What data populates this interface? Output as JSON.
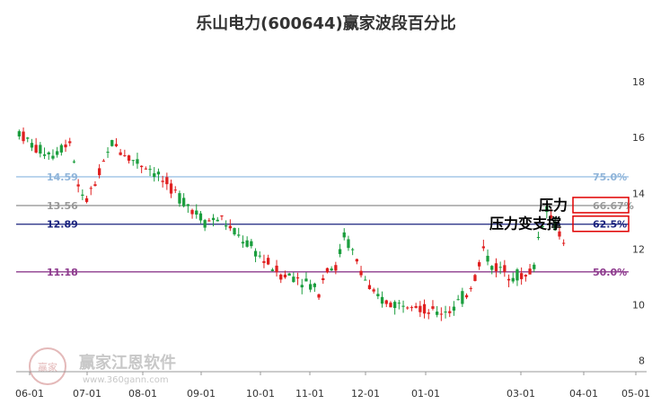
{
  "chart_data": {
    "type": "candlestick",
    "title": "乐山电力(600644)赢家波段百分比",
    "x_ticks": [
      "06-01",
      "07-01",
      "08-01",
      "09-01",
      "10-01",
      "11-01",
      "12-01",
      "01-01",
      "03-01",
      "04-01",
      "05-01"
    ],
    "y_ticks": [
      8,
      10,
      12,
      14,
      16,
      18
    ],
    "ylim": [
      7.6,
      19.0
    ],
    "levels": [
      {
        "label_left": "14.59",
        "label_right": "75.0%",
        "value": 14.59,
        "color": "#9dc3e6"
      },
      {
        "label_left": "13.56",
        "label_right": "66.67%",
        "value": 13.56,
        "color": "#999999"
      },
      {
        "label_left": "12.89",
        "label_right": "62.5%",
        "value": 12.89,
        "color": "#1a237e"
      },
      {
        "label_left": "11.18",
        "label_right": "50.0%",
        "value": 11.18,
        "color": "#8e3b8e"
      }
    ],
    "callouts": [
      {
        "text": "压力",
        "level": 13.56
      },
      {
        "text": "压力变支撑",
        "level": 12.89
      }
    ],
    "price_path": [
      [
        0,
        16.2
      ],
      [
        4,
        15.6
      ],
      [
        8,
        15.4
      ],
      [
        12,
        15.9
      ],
      [
        15,
        13.7
      ],
      [
        18,
        14.3
      ],
      [
        22,
        15.8
      ],
      [
        27,
        15.2
      ],
      [
        31,
        14.9
      ],
      [
        35,
        14.3
      ],
      [
        40,
        13.6
      ],
      [
        44,
        13.0
      ],
      [
        48,
        13.1
      ],
      [
        50,
        12.7
      ],
      [
        54,
        12.2
      ],
      [
        58,
        11.6
      ],
      [
        62,
        11.1
      ],
      [
        66,
        11.0
      ],
      [
        68,
        10.8
      ],
      [
        71,
        10.5
      ],
      [
        73,
        11.4
      ],
      [
        75,
        11.3
      ],
      [
        77,
        12.5
      ],
      [
        79,
        11.9
      ],
      [
        82,
        10.9
      ],
      [
        84,
        10.3
      ],
      [
        87,
        10.1
      ],
      [
        90,
        10.0
      ],
      [
        93,
        10.2
      ],
      [
        96,
        9.8
      ],
      [
        99,
        9.7
      ],
      [
        103,
        9.9
      ],
      [
        106,
        10.4
      ],
      [
        108,
        11.0
      ],
      [
        110,
        12.0
      ],
      [
        112,
        11.4
      ],
      [
        114,
        11.3
      ],
      [
        117,
        11.1
      ],
      [
        120,
        11.0
      ],
      [
        122,
        11.4
      ],
      [
        123,
        12.4
      ],
      [
        125,
        13.5
      ],
      [
        127,
        12.8
      ],
      [
        129,
        12.4
      ],
      [
        130,
        12.1
      ]
    ]
  },
  "watermark": {
    "name": "赢家江恩软件",
    "url": "www.360gann.com",
    "seal": "赢家"
  }
}
